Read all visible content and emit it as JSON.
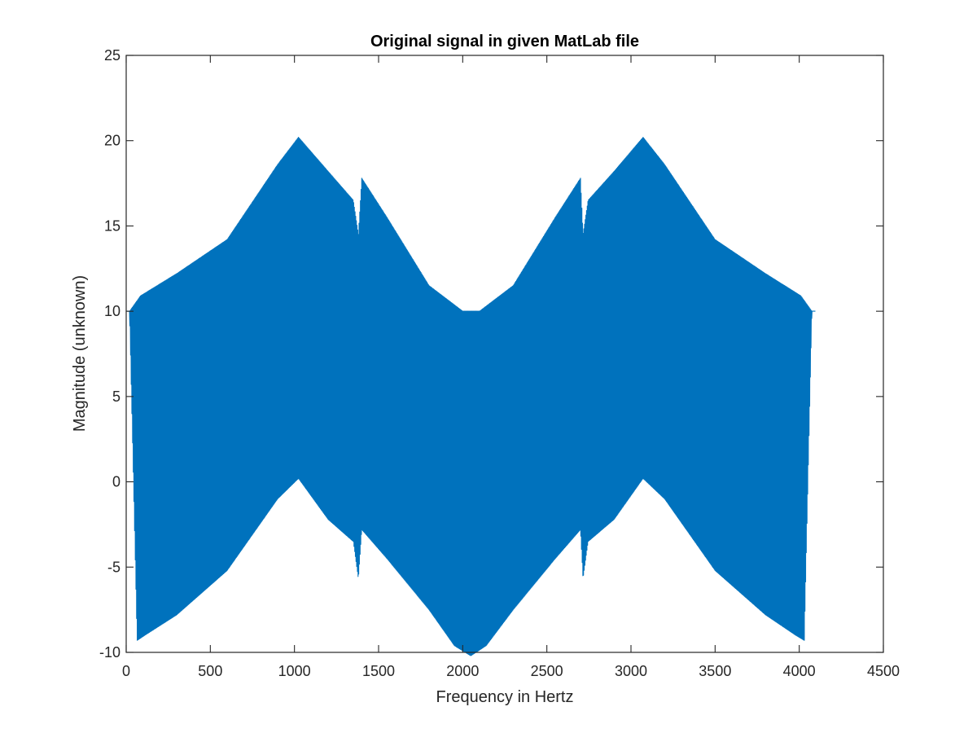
{
  "chart_data": {
    "type": "line",
    "title": "Original signal in given MatLab file",
    "xlabel": "Frequency in Hertz",
    "ylabel": "Magnitude (unknown)",
    "xlim": [
      0,
      4500
    ],
    "ylim": [
      -10,
      25
    ],
    "xticks": [
      0,
      500,
      1000,
      1500,
      2000,
      2500,
      3000,
      3500,
      4000,
      4500
    ],
    "yticks": [
      -10,
      -5,
      0,
      5,
      10,
      15,
      20,
      25
    ],
    "grid": false,
    "legend": "none",
    "series": [
      {
        "color": "#0072bd",
        "x_range": [
          0,
          4096
        ],
        "peak_points": [
          [
            0,
            10
          ],
          [
            20,
            10
          ],
          [
            85,
            10.9
          ],
          [
            300,
            12.2
          ],
          [
            600,
            14.2
          ],
          [
            900,
            18.6
          ],
          [
            1024,
            20.2
          ],
          [
            1200,
            18.2
          ],
          [
            1350,
            16.5
          ],
          [
            1380,
            14.5
          ],
          [
            1400,
            17.8
          ],
          [
            1550,
            15.5
          ],
          [
            1800,
            11.5
          ],
          [
            2000,
            10
          ],
          [
            2048,
            10
          ],
          [
            2100,
            10
          ],
          [
            2300,
            11.5
          ],
          [
            2550,
            15.5
          ],
          [
            2700,
            17.8
          ],
          [
            2715,
            14.5
          ],
          [
            2745,
            16.5
          ],
          [
            2900,
            18.2
          ],
          [
            3072,
            20.2
          ],
          [
            3200,
            18.6
          ],
          [
            3500,
            14.2
          ],
          [
            3800,
            12.2
          ],
          [
            4010,
            10.9
          ],
          [
            4075,
            10
          ],
          [
            4096,
            10
          ]
        ],
        "trough_points": [
          [
            0,
            10
          ],
          [
            20,
            10
          ],
          [
            65,
            -9.3
          ],
          [
            110,
            -9.0
          ],
          [
            300,
            -7.8
          ],
          [
            600,
            -5.2
          ],
          [
            900,
            -1.0
          ],
          [
            1024,
            0.2
          ],
          [
            1200,
            -2.2
          ],
          [
            1350,
            -3.5
          ],
          [
            1380,
            -5.7
          ],
          [
            1400,
            -2.8
          ],
          [
            1550,
            -4.5
          ],
          [
            1800,
            -7.5
          ],
          [
            1950,
            -9.6
          ],
          [
            2048,
            -10.2
          ],
          [
            2140,
            -9.6
          ],
          [
            2300,
            -7.5
          ],
          [
            2550,
            -4.5
          ],
          [
            2700,
            -2.8
          ],
          [
            2715,
            -5.7
          ],
          [
            2745,
            -3.5
          ],
          [
            2900,
            -2.2
          ],
          [
            3072,
            0.2
          ],
          [
            3200,
            -1.0
          ],
          [
            3500,
            -5.2
          ],
          [
            3800,
            -7.8
          ],
          [
            3980,
            -9.0
          ],
          [
            4030,
            -9.3
          ],
          [
            4075,
            10
          ],
          [
            4096,
            10
          ]
        ]
      }
    ]
  }
}
